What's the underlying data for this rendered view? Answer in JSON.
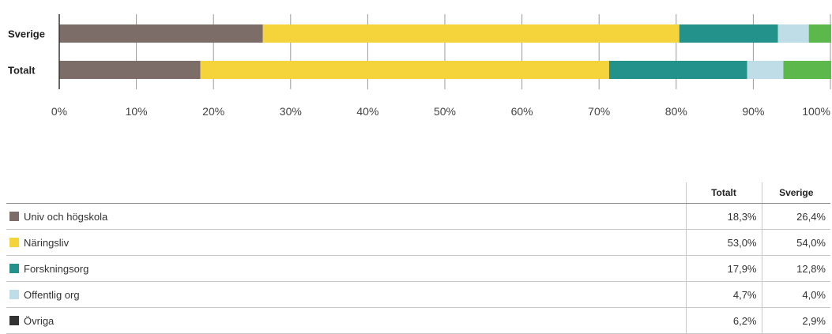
{
  "chart_data": {
    "type": "bar",
    "orientation": "horizontal",
    "stacked": true,
    "categories": [
      "Sverige",
      "Totalt"
    ],
    "series": [
      {
        "name": "Univ och högskola",
        "color": "#7c6d69",
        "values": [
          26.4,
          18.3
        ]
      },
      {
        "name": "Näringsliv",
        "color": "#f5d33a",
        "values": [
          54.0,
          53.0
        ]
      },
      {
        "name": "Forskningsorg",
        "color": "#22928a",
        "values": [
          12.8,
          17.9
        ]
      },
      {
        "name": "Offentlig org",
        "color": "#bfdde6",
        "values": [
          4.0,
          4.7
        ]
      },
      {
        "name": "Övriga",
        "color": "#5cb84a",
        "legend_color": "#333333",
        "values": [
          2.9,
          6.2
        ]
      }
    ],
    "xlim": [
      0,
      100
    ],
    "xticks": [
      "0%",
      "10%",
      "20%",
      "30%",
      "40%",
      "50%",
      "60%",
      "70%",
      "80%",
      "90%",
      "100%"
    ],
    "grid": true
  },
  "table": {
    "headers": [
      "Totalt",
      "Sverige"
    ],
    "rows": [
      {
        "label": "Univ och högskola",
        "totalt": "18,3%",
        "sverige": "26,4%"
      },
      {
        "label": "Näringsliv",
        "totalt": "53,0%",
        "sverige": "54,0%"
      },
      {
        "label": "Forskningsorg",
        "totalt": "17,9%",
        "sverige": "12,8%"
      },
      {
        "label": "Offentlig org",
        "totalt": "4,7%",
        "sverige": "4,0%"
      },
      {
        "label": "Övriga",
        "totalt": "6,2%",
        "sverige": "2,9%"
      }
    ]
  }
}
